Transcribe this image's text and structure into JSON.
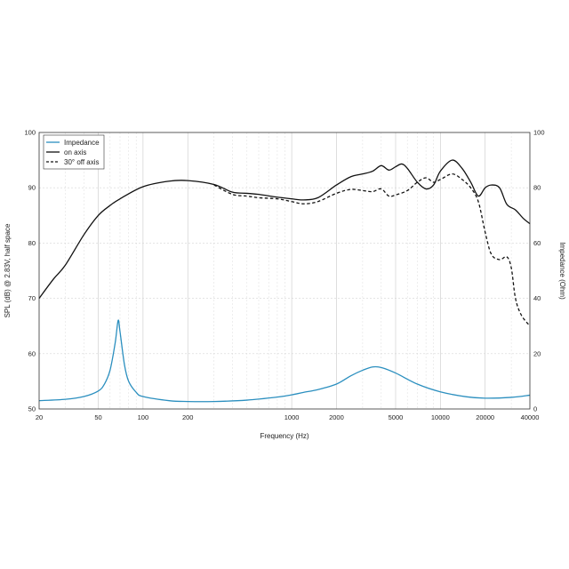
{
  "chart_data": {
    "type": "line",
    "xscale": "log",
    "xlim": [
      20,
      40000
    ],
    "ylim_left": [
      50,
      100
    ],
    "ylim_right": [
      0,
      100
    ],
    "xlabel": "Frequency (Hz)",
    "ylabel_left": "SPL (dB) @ 2.83V, half space",
    "ylabel_right": "Impedance (Ohm)",
    "x_ticks": [
      {
        "value": 20,
        "label": "20"
      },
      {
        "value": 50,
        "label": "50"
      },
      {
        "value": 100,
        "label": "100"
      },
      {
        "value": 200,
        "label": "200"
      },
      {
        "value": 1000,
        "label": "1000"
      },
      {
        "value": 2000,
        "label": "2000"
      },
      {
        "value": 5000,
        "label": "5000"
      },
      {
        "value": 10000,
        "label": "10000"
      },
      {
        "value": 20000,
        "label": "20000"
      },
      {
        "value": 40000,
        "label": "40000"
      }
    ],
    "y_ticks_left": [
      {
        "value": 50,
        "label": "50"
      },
      {
        "value": 60,
        "label": "60"
      },
      {
        "value": 70,
        "label": "70"
      },
      {
        "value": 80,
        "label": "80"
      },
      {
        "value": 90,
        "label": "90"
      },
      {
        "value": 100,
        "label": "100"
      }
    ],
    "y_ticks_right": [
      {
        "value": 0,
        "label": "0"
      },
      {
        "value": 20,
        "label": "20"
      },
      {
        "value": 40,
        "label": "40"
      },
      {
        "value": 60,
        "label": "60"
      },
      {
        "value": 80,
        "label": "80"
      },
      {
        "value": 100,
        "label": "100"
      }
    ],
    "grid": true,
    "legend_position": "top-left",
    "series": [
      {
        "name": "Impedance",
        "axis": "right",
        "color": "#2b8fbf",
        "style": "solid",
        "points": [
          [
            20,
            3.0
          ],
          [
            30,
            3.5
          ],
          [
            40,
            4.5
          ],
          [
            50,
            6.5
          ],
          [
            55,
            9
          ],
          [
            60,
            14
          ],
          [
            65,
            24
          ],
          [
            68,
            32
          ],
          [
            70,
            28
          ],
          [
            75,
            16
          ],
          [
            80,
            10
          ],
          [
            90,
            6
          ],
          [
            100,
            4.5
          ],
          [
            150,
            3.0
          ],
          [
            200,
            2.7
          ],
          [
            300,
            2.7
          ],
          [
            500,
            3.2
          ],
          [
            800,
            4.3
          ],
          [
            1000,
            5.1
          ],
          [
            1200,
            6.0
          ],
          [
            1500,
            7.0
          ],
          [
            2000,
            9.0
          ],
          [
            2500,
            12.0
          ],
          [
            3000,
            14.0
          ],
          [
            3500,
            15.2
          ],
          [
            4000,
            15.0
          ],
          [
            5000,
            13.0
          ],
          [
            7000,
            9.0
          ],
          [
            10000,
            6.2
          ],
          [
            15000,
            4.4
          ],
          [
            20000,
            3.9
          ],
          [
            30000,
            4.2
          ],
          [
            40000,
            5.0
          ]
        ]
      },
      {
        "name": "on axis",
        "axis": "left",
        "color": "#111111",
        "style": "solid",
        "points": [
          [
            20,
            70
          ],
          [
            25,
            73.5
          ],
          [
            30,
            76
          ],
          [
            40,
            81.5
          ],
          [
            50,
            85
          ],
          [
            60,
            86.8
          ],
          [
            70,
            88
          ],
          [
            100,
            90.2
          ],
          [
            150,
            91.2
          ],
          [
            200,
            91.3
          ],
          [
            300,
            90.6
          ],
          [
            400,
            89.2
          ],
          [
            500,
            89.0
          ],
          [
            600,
            88.8
          ],
          [
            800,
            88.3
          ],
          [
            1000,
            88.0
          ],
          [
            1200,
            87.8
          ],
          [
            1500,
            88.2
          ],
          [
            2000,
            90.5
          ],
          [
            2500,
            92.0
          ],
          [
            3000,
            92.5
          ],
          [
            3500,
            93.0
          ],
          [
            4000,
            94.0
          ],
          [
            4500,
            93.2
          ],
          [
            5000,
            93.8
          ],
          [
            5500,
            94.3
          ],
          [
            6000,
            93.5
          ],
          [
            7000,
            91.0
          ],
          [
            8000,
            89.8
          ],
          [
            9000,
            90.5
          ],
          [
            10000,
            93.0
          ],
          [
            12000,
            95.0
          ],
          [
            14000,
            93.5
          ],
          [
            16000,
            91.0
          ],
          [
            18000,
            88.5
          ],
          [
            20000,
            90.0
          ],
          [
            22000,
            90.5
          ],
          [
            25000,
            90.0
          ],
          [
            28000,
            87.0
          ],
          [
            32000,
            86.0
          ],
          [
            36000,
            84.5
          ],
          [
            40000,
            83.5
          ]
        ]
      },
      {
        "name": "30° off axis",
        "axis": "left",
        "color": "#111111",
        "style": "dashed",
        "points": [
          [
            300,
            90.5
          ],
          [
            400,
            88.8
          ],
          [
            500,
            88.5
          ],
          [
            600,
            88.2
          ],
          [
            800,
            88.0
          ],
          [
            1000,
            87.5
          ],
          [
            1200,
            87.1
          ],
          [
            1500,
            87.5
          ],
          [
            2000,
            89.0
          ],
          [
            2500,
            89.7
          ],
          [
            3000,
            89.5
          ],
          [
            3500,
            89.3
          ],
          [
            4000,
            89.8
          ],
          [
            4500,
            88.5
          ],
          [
            5000,
            88.7
          ],
          [
            6000,
            89.5
          ],
          [
            7000,
            91.0
          ],
          [
            8000,
            91.8
          ],
          [
            9000,
            91.0
          ],
          [
            10000,
            91.5
          ],
          [
            12000,
            92.5
          ],
          [
            14000,
            91.5
          ],
          [
            16000,
            90.0
          ],
          [
            18000,
            87.5
          ],
          [
            20000,
            82.0
          ],
          [
            22000,
            78.0
          ],
          [
            25000,
            77.0
          ],
          [
            28000,
            77.5
          ],
          [
            30000,
            75.5
          ],
          [
            32000,
            70.0
          ],
          [
            35000,
            67.0
          ],
          [
            40000,
            65.0
          ]
        ]
      }
    ]
  }
}
